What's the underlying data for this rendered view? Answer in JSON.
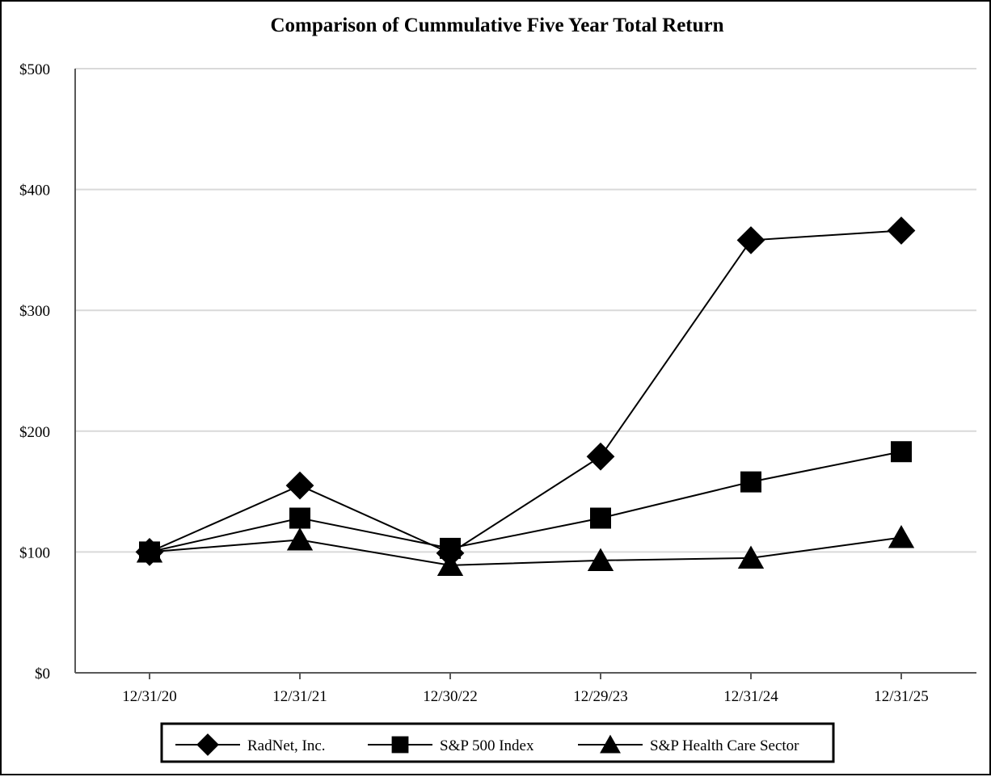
{
  "chart_data": {
    "type": "line",
    "title": "Comparison of Cummulative Five Year Total Return",
    "xlabel": "",
    "ylabel": "",
    "categories": [
      "12/31/20",
      "12/31/21",
      "12/30/22",
      "12/29/23",
      "12/31/24",
      "12/31/25"
    ],
    "ylim": [
      0,
      500
    ],
    "yticks": [
      0,
      100,
      200,
      300,
      400,
      500
    ],
    "ytick_labels": [
      "$0",
      "$100",
      "$200",
      "$300",
      "$400",
      "$500"
    ],
    "grid": "horizontal",
    "legend_position": "bottom",
    "series": [
      {
        "name": "RadNet, Inc.",
        "marker": "diamond",
        "values": [
          100,
          155,
          99,
          179,
          358,
          366
        ]
      },
      {
        "name": "S&P 500 Index",
        "marker": "square",
        "values": [
          100,
          128,
          103,
          128,
          158,
          183
        ]
      },
      {
        "name": "S&P Health Care Sector",
        "marker": "triangle",
        "values": [
          100,
          110,
          89,
          93,
          95,
          112
        ]
      }
    ],
    "colors": {
      "line": "#000000",
      "grid": "#d9d9d9",
      "axis": "#595959"
    }
  }
}
